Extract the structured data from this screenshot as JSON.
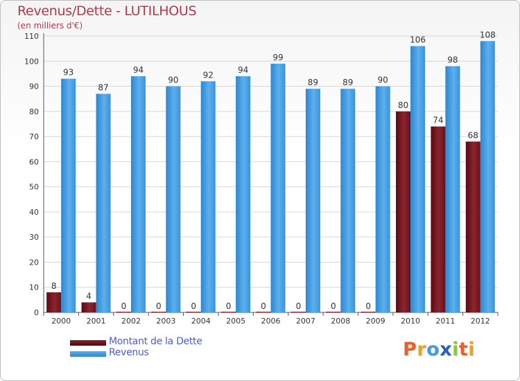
{
  "chart_data": {
    "type": "bar",
    "title": "Revenus/Dette - LUTILHOUS",
    "subtitle": "(en milliers d'€)",
    "categories": [
      "2000",
      "2001",
      "2002",
      "2003",
      "2004",
      "2005",
      "2006",
      "2007",
      "2008",
      "2009",
      "2010",
      "2011",
      "2012"
    ],
    "series": [
      {
        "name": "Montant de la Dette",
        "color": "#7a1420",
        "values": [
          8,
          4,
          0,
          0,
          0,
          0,
          0,
          0,
          0,
          0,
          80,
          74,
          68
        ]
      },
      {
        "name": "Revenus",
        "color": "#3f98df",
        "values": [
          93,
          87,
          94,
          90,
          92,
          94,
          99,
          89,
          89,
          90,
          106,
          98,
          108
        ]
      }
    ],
    "ylim": [
      0,
      110
    ],
    "yticks": [
      0,
      10,
      20,
      30,
      40,
      50,
      60,
      70,
      80,
      90,
      100,
      110
    ],
    "grid": true,
    "legend_position": "bottom-left"
  },
  "logo": {
    "letters": [
      "P",
      "r",
      "o",
      "x",
      "i",
      "t",
      "i"
    ],
    "colors": [
      "#e8612c",
      "#f0a020",
      "#3fa0d8",
      "#2b5fb8",
      "#8cc63f",
      "#e8612c",
      "#f0a020"
    ]
  }
}
